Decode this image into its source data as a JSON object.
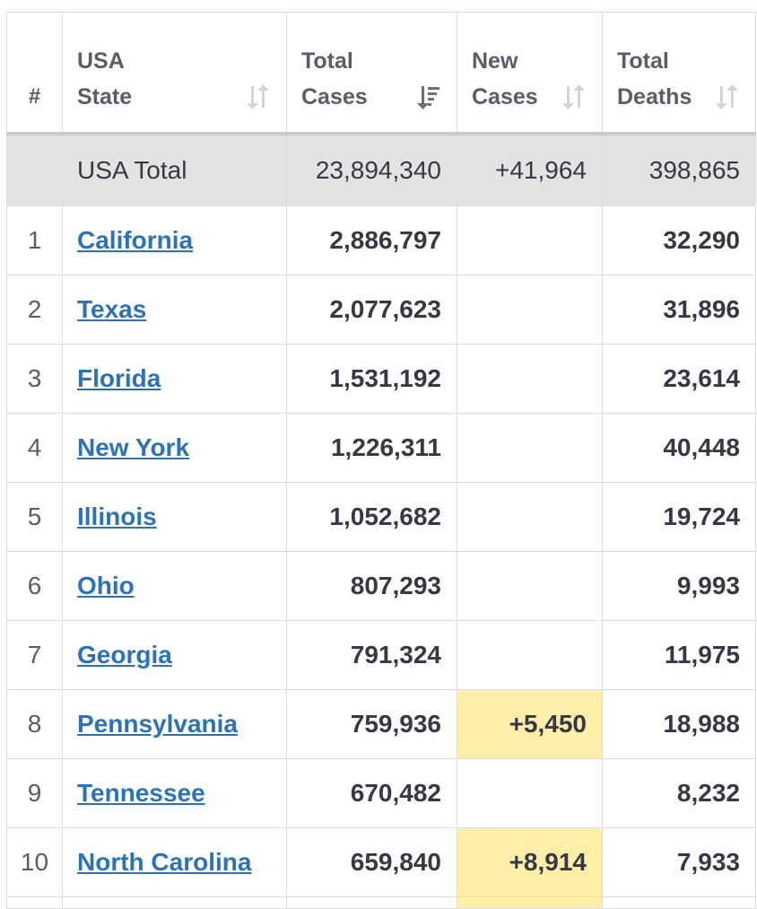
{
  "headers": {
    "rank": "#",
    "state_line1": "USA",
    "state_line2": "State",
    "cases_line1": "Total",
    "cases_line2": "Cases",
    "new_line1": "New",
    "new_line2": "Cases",
    "deaths_line1": "Total",
    "deaths_line2": "Deaths"
  },
  "total": {
    "label": "USA Total",
    "total_cases": "23,894,340",
    "new_cases": "+41,964",
    "total_deaths": "398,865"
  },
  "rows": [
    {
      "rank": "1",
      "state": "California",
      "total_cases": "2,886,797",
      "new_cases": "",
      "total_deaths": "32,290"
    },
    {
      "rank": "2",
      "state": "Texas",
      "total_cases": "2,077,623",
      "new_cases": "",
      "total_deaths": "31,896"
    },
    {
      "rank": "3",
      "state": "Florida",
      "total_cases": "1,531,192",
      "new_cases": "",
      "total_deaths": "23,614"
    },
    {
      "rank": "4",
      "state": "New York",
      "total_cases": "1,226,311",
      "new_cases": "",
      "total_deaths": "40,448"
    },
    {
      "rank": "5",
      "state": "Illinois",
      "total_cases": "1,052,682",
      "new_cases": "",
      "total_deaths": "19,724"
    },
    {
      "rank": "6",
      "state": "Ohio",
      "total_cases": "807,293",
      "new_cases": "",
      "total_deaths": "9,993"
    },
    {
      "rank": "7",
      "state": "Georgia",
      "total_cases": "791,324",
      "new_cases": "",
      "total_deaths": "11,975"
    },
    {
      "rank": "8",
      "state": "Pennsylvania",
      "total_cases": "759,936",
      "new_cases": "+5,450",
      "total_deaths": "18,988"
    },
    {
      "rank": "9",
      "state": "Tennessee",
      "total_cases": "670,482",
      "new_cases": "",
      "total_deaths": "8,232"
    },
    {
      "rank": "10",
      "state": "North Carolina",
      "total_cases": "659,840",
      "new_cases": "+8,914",
      "total_deaths": "7,933"
    }
  ],
  "colors": {
    "link": "#2b73b6",
    "highlight": "#ffeeaa",
    "total_bg": "#e3e3e3",
    "border": "#dcdcdc"
  },
  "icons": {
    "sort_default": "sort-arrows-icon",
    "sort_active": "sort-descending-icon"
  }
}
